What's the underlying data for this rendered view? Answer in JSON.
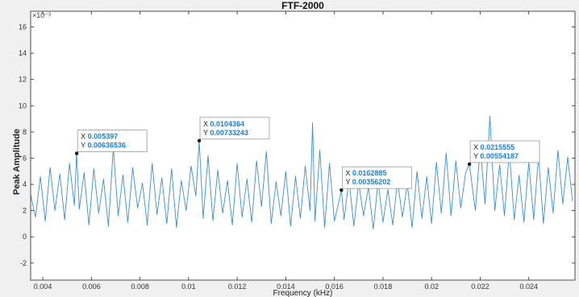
{
  "chart_data": {
    "type": "line",
    "title": "FTF-2000",
    "xlabel": "Frequency (kHz)",
    "ylabel": "Peak Amplitude",
    "exponent_label": "×10⁻³",
    "xlim": [
      0.0035,
      0.0259
    ],
    "ylim": [
      -3.3,
      17.2
    ],
    "xticks": [
      0.004,
      0.006,
      0.008,
      0.01,
      0.012,
      0.014,
      0.016,
      0.018,
      0.02,
      0.022,
      0.024
    ],
    "xtick_labels": [
      "0.004",
      "0.006",
      "0.008",
      "0.01",
      "0.012",
      "0.014",
      "0.016",
      "0.018",
      "0.02",
      "0.022",
      "0.024"
    ],
    "yticks": [
      -2,
      0,
      2,
      4,
      6,
      8,
      10,
      12,
      14,
      16
    ],
    "ytick_labels": [
      "-2",
      "0",
      "2",
      "4",
      "6",
      "8",
      "10",
      "12",
      "14",
      "16"
    ],
    "grid": false,
    "series": [
      {
        "color": "#3a8fcf",
        "x": [
          0.0035,
          0.0037,
          0.0039,
          0.0041,
          0.0043,
          0.0045,
          0.0047,
          0.0049,
          0.0051,
          0.0053,
          0.00539,
          0.0055,
          0.0057,
          0.0059,
          0.0061,
          0.0063,
          0.0065,
          0.0067,
          0.0069,
          0.0071,
          0.0073,
          0.0075,
          0.0077,
          0.0079,
          0.0081,
          0.0083,
          0.0085,
          0.0087,
          0.0089,
          0.0091,
          0.0093,
          0.0095,
          0.0097,
          0.0099,
          0.0101,
          0.0103,
          0.0104364,
          0.0106,
          0.0108,
          0.011,
          0.0112,
          0.0114,
          0.0116,
          0.0118,
          0.012,
          0.0122,
          0.0124,
          0.0126,
          0.0128,
          0.013,
          0.0132,
          0.0134,
          0.0136,
          0.0138,
          0.014,
          0.0142,
          0.0144,
          0.0146,
          0.0148,
          0.015,
          0.0151,
          0.0152,
          0.0154,
          0.0156,
          0.0158,
          0.016,
          0.0162885,
          0.0164,
          0.0166,
          0.0168,
          0.017,
          0.0172,
          0.0174,
          0.0176,
          0.0178,
          0.018,
          0.0182,
          0.0184,
          0.0186,
          0.0188,
          0.019,
          0.0192,
          0.0194,
          0.0196,
          0.0198,
          0.02,
          0.0202,
          0.0204,
          0.0206,
          0.0208,
          0.021,
          0.0212,
          0.0214,
          0.0215555,
          0.0218,
          0.022,
          0.0222,
          0.0224,
          0.0226,
          0.0228,
          0.023,
          0.0232,
          0.0234,
          0.0236,
          0.0238,
          0.024,
          0.0242,
          0.0244,
          0.0246,
          0.0248,
          0.025,
          0.0252,
          0.0254,
          0.0256,
          0.0258
        ],
        "y": [
          3.2,
          1.5,
          4.6,
          1.2,
          5.3,
          2.0,
          4.8,
          1.3,
          5.6,
          2.4,
          6.37,
          2.1,
          4.9,
          0.9,
          5.2,
          1.8,
          4.4,
          0.8,
          6.8,
          1.6,
          4.7,
          1.1,
          5.3,
          2.2,
          4.1,
          0.9,
          5.6,
          1.7,
          4.5,
          1.0,
          5.2,
          0.7,
          4.3,
          2.0,
          5.4,
          3.1,
          7.33,
          1.4,
          6.2,
          1.2,
          5.1,
          1.8,
          4.3,
          0.9,
          5.6,
          1.5,
          4.4,
          1.1,
          5.8,
          2.3,
          6.5,
          1.0,
          4.2,
          1.6,
          5.0,
          0.8,
          4.6,
          1.4,
          5.4,
          2.0,
          8.7,
          1.2,
          6.6,
          0.7,
          5.6,
          1.2,
          3.56,
          1.3,
          4.4,
          0.8,
          4.1,
          1.6,
          3.8,
          0.6,
          4.2,
          1.1,
          3.6,
          0.9,
          4.3,
          1.5,
          4.0,
          0.7,
          5.0,
          1.4,
          4.6,
          1.0,
          5.7,
          1.8,
          6.4,
          1.6,
          5.8,
          2.2,
          4.9,
          5.54,
          2.0,
          6.9,
          2.5,
          9.2,
          2.0,
          5.5,
          1.6,
          6.6,
          1.3,
          4.7,
          1.1,
          5.7,
          1.3,
          6.2,
          1.0,
          5.3,
          1.8,
          6.6,
          2.5,
          6.1,
          2.7
        ]
      }
    ],
    "datatips": [
      {
        "x": 0.005397,
        "y": 6.36536,
        "x_label": "X",
        "x_value": "0.005397",
        "y_label": "Y",
        "y_value": "0.00636536"
      },
      {
        "x": 0.0104364,
        "y": 7.33243,
        "x_label": "X",
        "x_value": "0.0104364",
        "y_label": "Y",
        "y_value": "0.00733243"
      },
      {
        "x": 0.0162885,
        "y": 3.56202,
        "x_label": "X",
        "x_value": "0.0162885",
        "y_label": "Y",
        "y_value": "0.00356202"
      },
      {
        "x": 0.0215555,
        "y": 5.54187,
        "x_label": "X",
        "x_value": "0.0215555",
        "y_label": "Y",
        "y_value": "0.00554187"
      }
    ]
  }
}
